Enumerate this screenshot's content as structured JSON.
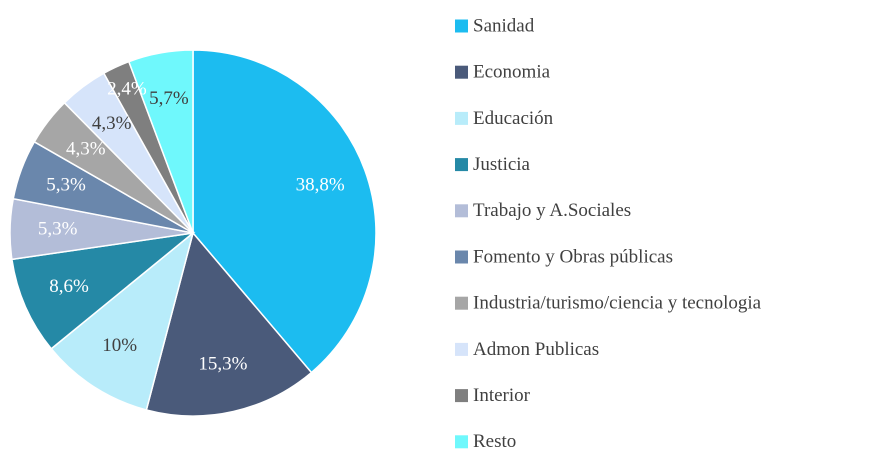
{
  "chart_data": {
    "type": "pie",
    "categories": [
      "Sanidad",
      "Economia",
      "Educación",
      "Justicia",
      "Trabajo y A.Sociales",
      "Fomento y Obras públicas",
      "Industria/turismo/ciencia y tecnologia",
      "Admon Publicas",
      "Interior",
      "Resto"
    ],
    "values": [
      38.8,
      15.3,
      10,
      8.6,
      5.3,
      5.3,
      4.3,
      4.3,
      2.4,
      5.7
    ],
    "value_labels": [
      "38,8%",
      "15,3%",
      "10%",
      "8,6%",
      "5,3%",
      "5,3%",
      "4,3%",
      "4,3%",
      "2,4%",
      "5,7%"
    ],
    "colors": [
      "#1cbcf0",
      "#4a5a7a",
      "#b8ecfa",
      "#2589a6",
      "#b3bdd8",
      "#6a87ac",
      "#a6a6a6",
      "#d6e4fa",
      "#7f7f7f",
      "#6ff8fc"
    ],
    "legend": "right"
  }
}
